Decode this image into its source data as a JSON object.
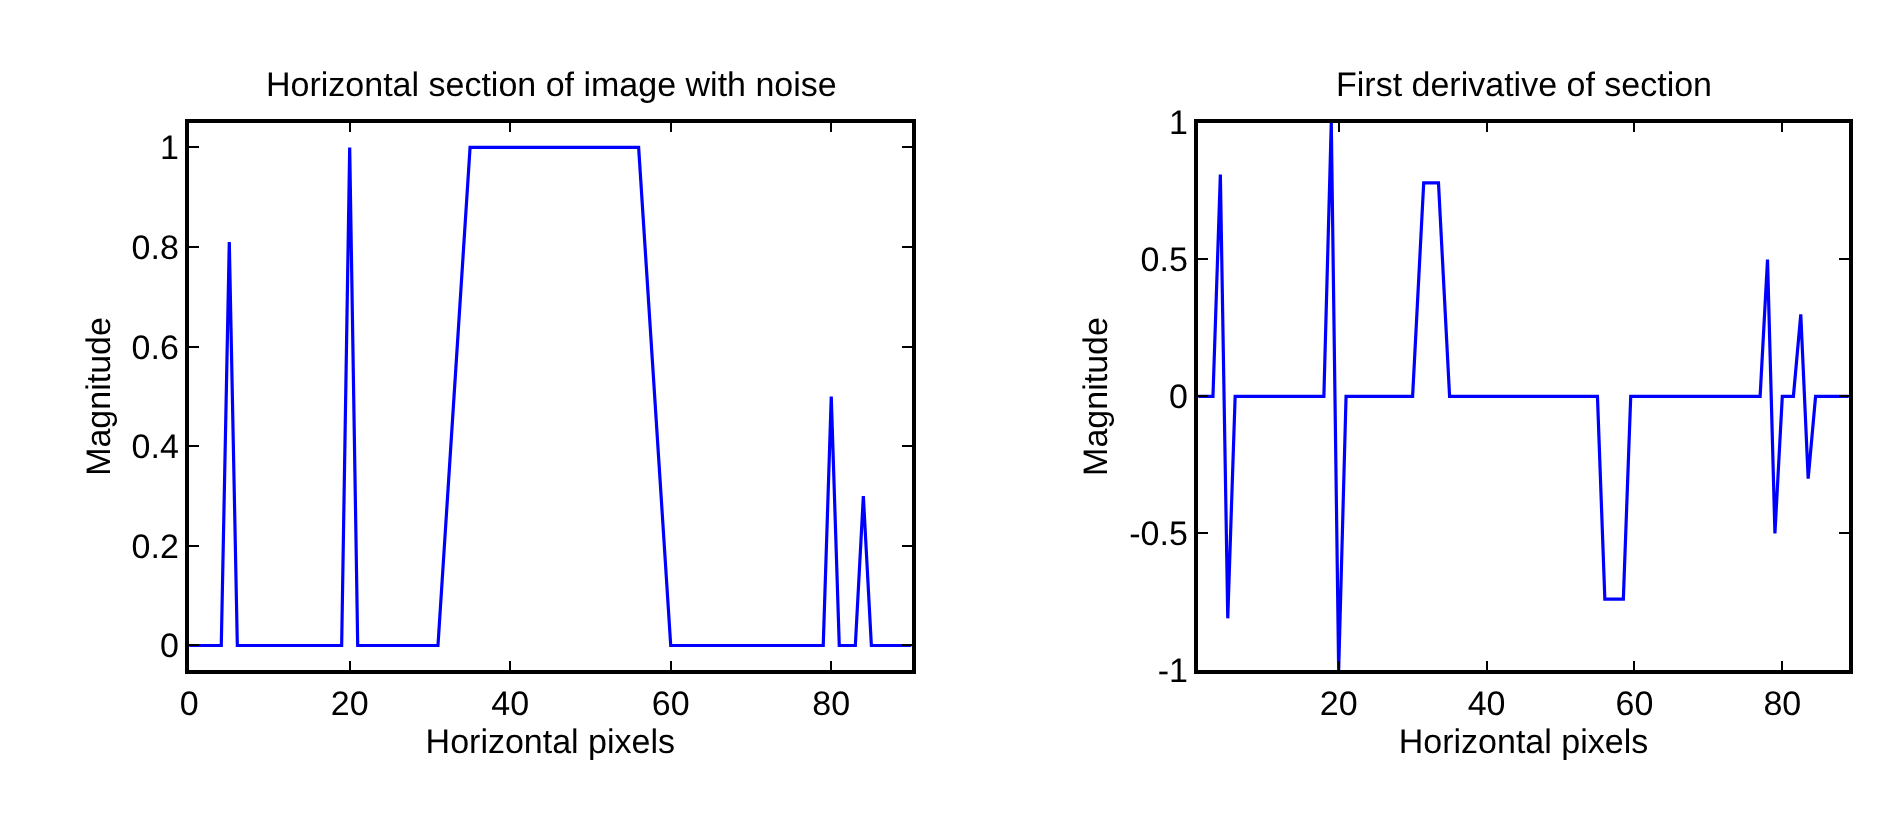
{
  "chart_data": [
    {
      "type": "line",
      "title": "Horizontal section of image with noise",
      "xlabel": "Horizontal pixels",
      "ylabel": "Magnitude",
      "x": [
        0,
        4,
        5,
        6,
        19,
        20,
        21,
        31,
        35,
        56,
        60,
        79,
        80,
        81,
        83,
        84,
        85,
        90
      ],
      "series": [
        {
          "color": "#0000ff",
          "values": [
            0,
            0,
            0.81,
            0,
            0,
            1,
            0,
            0,
            1,
            1,
            0,
            0,
            0.5,
            0,
            0,
            0.3,
            0,
            0
          ]
        }
      ],
      "xlim": [
        0,
        90
      ],
      "ylim": [
        -0.05,
        1.05
      ],
      "xticks": [
        0,
        20,
        40,
        60,
        80
      ],
      "yticks": [
        0,
        0.2,
        0.4,
        0.6,
        0.8,
        1
      ]
    },
    {
      "type": "line",
      "title": "First derivative of section",
      "xlabel": "Horizontal pixels",
      "ylabel": "Magnitude",
      "x": [
        1,
        3,
        4,
        5,
        6,
        18,
        19,
        20,
        21,
        30,
        31.5,
        33.5,
        35,
        55,
        56,
        58.5,
        59.5,
        77,
        78,
        79,
        80,
        81.5,
        82.5,
        83.5,
        84.5,
        89
      ],
      "series": [
        {
          "color": "#0000ff",
          "values": [
            0,
            0,
            0.81,
            -0.81,
            0,
            0,
            1,
            -1,
            0,
            0,
            0.78,
            0.78,
            0,
            0,
            -0.74,
            -0.74,
            0,
            0,
            0.5,
            -0.5,
            0,
            0,
            0.3,
            -0.3,
            0,
            0
          ]
        }
      ],
      "xlim": [
        1,
        89
      ],
      "ylim": [
        -1,
        1
      ],
      "xticks": [
        20,
        40,
        60,
        80
      ],
      "yticks": [
        -1,
        -0.5,
        0,
        0.5,
        1
      ]
    }
  ]
}
